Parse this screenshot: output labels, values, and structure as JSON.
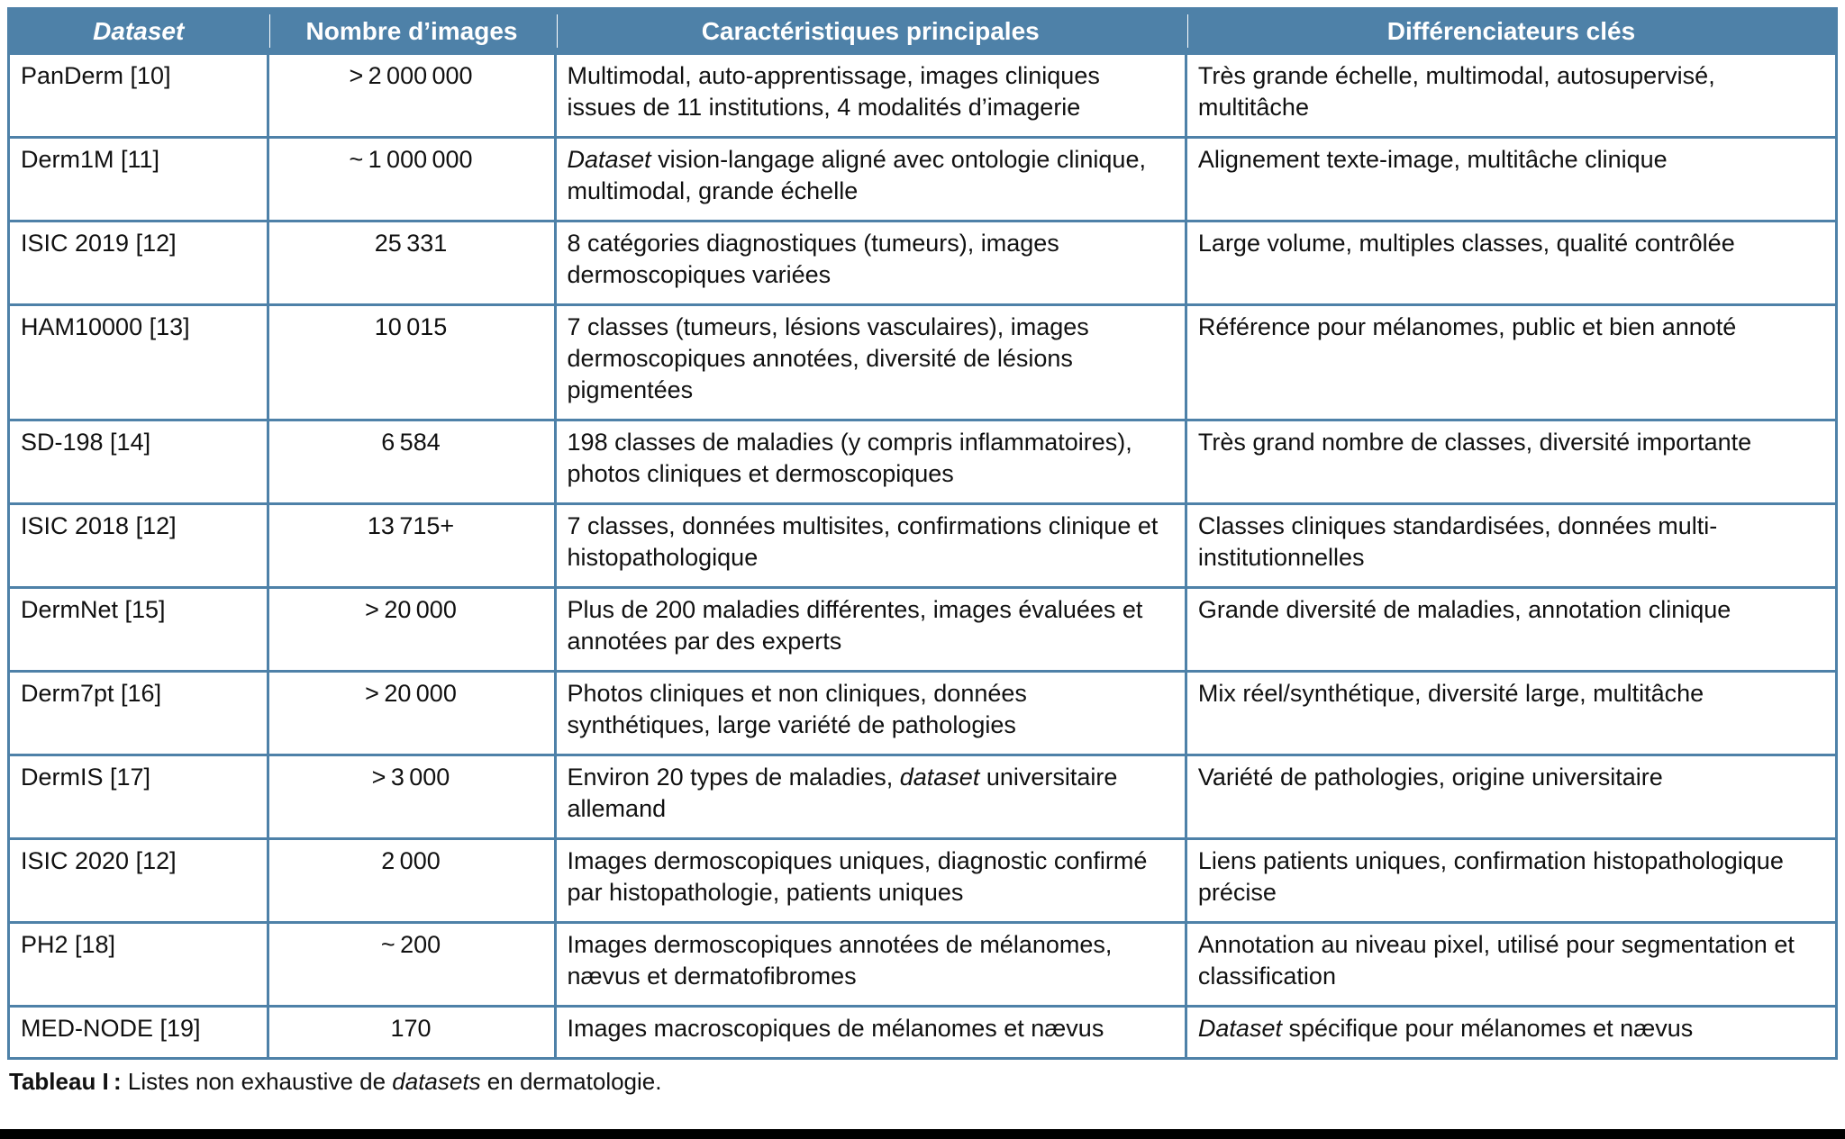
{
  "colors": {
    "accent_blue": "#4e81a8",
    "header_text": "#ffffff",
    "body_text": "#111111",
    "bottom_rule": "#000000"
  },
  "table": {
    "columns": [
      {
        "label": [
          {
            "t": "Dataset",
            "i": true
          }
        ]
      },
      {
        "label": "Nombre d’images"
      },
      {
        "label": "Caractéristiques principales"
      },
      {
        "label": "Différenciateurs clés"
      }
    ],
    "rows": [
      {
        "name": "PanDerm [10]",
        "count": "> 2 000 000",
        "features": "Multimodal, auto-apprentissage, images cliniques issues de 11 institutions, 4 modalités d’imagerie",
        "differentiators": "Très grande échelle, multimodal, autosupervisé, multitâche"
      },
      {
        "name": "Derm1M [11]",
        "count": "~ 1 000 000",
        "features": [
          {
            "t": "Dataset",
            "i": true
          },
          {
            "t": " vision-langage aligné avec ontologie clinique, multimodal, grande échelle"
          }
        ],
        "differentiators": "Alignement texte-image, multitâche clinique"
      },
      {
        "name": "ISIC 2019 [12]",
        "count": "25 331",
        "features": "8 catégories diagnostiques (tumeurs), images dermoscopiques variées",
        "differentiators": "Large volume, multiples classes, qualité contrôlée"
      },
      {
        "name": "HAM10000 [13]",
        "count": "10 015",
        "features": "7 classes (tumeurs, lésions vasculaires), images dermoscopiques annotées, diversité de lésions pigmentées",
        "differentiators": "Référence pour mélanomes, public et bien annoté"
      },
      {
        "name": "SD-198 [14]",
        "count": "6 584",
        "features": "198 classes de maladies (y compris inflammatoires), photos cliniques et dermoscopiques",
        "differentiators": "Très grand nombre de classes, diversité importante"
      },
      {
        "name": "ISIC 2018 [12]",
        "count": "13 715+",
        "features": "7 classes, données multisites, confirmations clinique et histopathologique",
        "differentiators": "Classes cliniques standardisées, données multi-institutionnelles"
      },
      {
        "name": "DermNet [15]",
        "count": "> 20 000",
        "features": "Plus de 200 maladies différentes, images évaluées et annotées par des experts",
        "differentiators": "Grande diversité de maladies, annotation clinique"
      },
      {
        "name": "Derm7pt [16]",
        "count": "> 20 000",
        "features": "Photos cliniques et non cliniques, données synthétiques, large variété de pathologies",
        "differentiators": "Mix réel/synthétique, diversité large, multitâche"
      },
      {
        "name": "DermIS [17]",
        "count": "> 3 000",
        "features": [
          {
            "t": "Environ 20 types de maladies, "
          },
          {
            "t": "dataset",
            "i": true
          },
          {
            "t": " universitaire allemand"
          }
        ],
        "differentiators": "Variété de pathologies, origine universitaire"
      },
      {
        "name": "ISIC 2020 [12]",
        "count": "2 000",
        "features": "Images dermoscopiques uniques, diagnostic confirmé par histopathologie, patients uniques",
        "differentiators": "Liens patients uniques, confirmation histopathologique précise"
      },
      {
        "name": "PH2 [18]",
        "count": "~ 200",
        "features": "Images dermoscopiques annotées de mélanomes, nævus et dermatofibromes",
        "differentiators": "Annotation au niveau pixel, utilisé pour segmentation et classification"
      },
      {
        "name": "MED-NODE [19]",
        "count": "170",
        "features": "Images macroscopiques de mélanomes et nævus",
        "differentiators": [
          {
            "t": "Dataset",
            "i": true
          },
          {
            "t": " spécifique pour mélanomes et nævus"
          }
        ]
      }
    ]
  },
  "caption": [
    {
      "t": "Tableau I :",
      "b": true
    },
    {
      "t": " Listes non exhaustive de "
    },
    {
      "t": "datasets",
      "i": true
    },
    {
      "t": " en dermatologie."
    }
  ]
}
